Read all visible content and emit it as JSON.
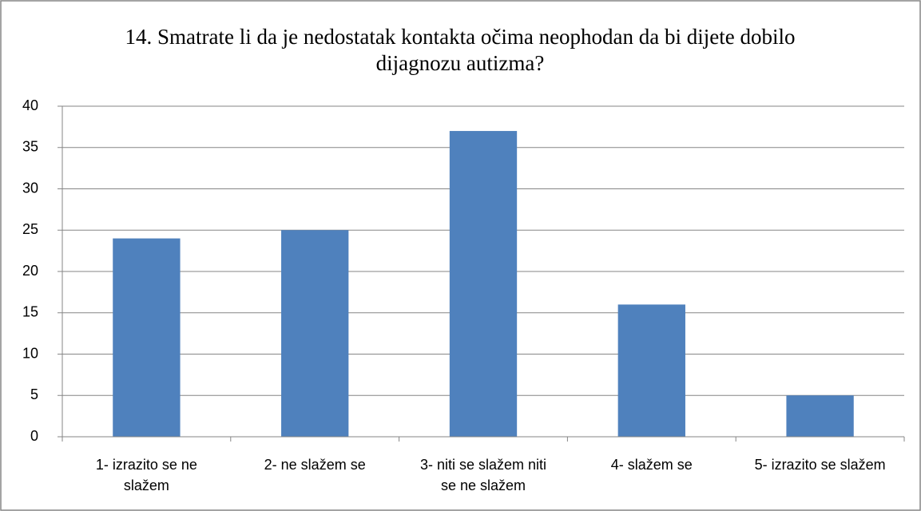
{
  "chart_data": {
    "type": "bar",
    "title": "14. Smatrate li da je nedostatak kontakta očima neophodan da bi dijete dobilo dijagnozu autizma?",
    "categories": [
      "1- izrazito se ne slažem",
      "2- ne slažem se",
      "3- niti se slažem niti se ne slažem",
      "4- slažem se",
      "5- izrazito se slažem"
    ],
    "values": [
      24,
      25,
      37,
      16,
      5
    ],
    "color": "#4f81bd",
    "ylim": [
      0,
      40
    ],
    "yticks": [
      0,
      5,
      10,
      15,
      20,
      25,
      30,
      35,
      40
    ],
    "grid": true
  }
}
